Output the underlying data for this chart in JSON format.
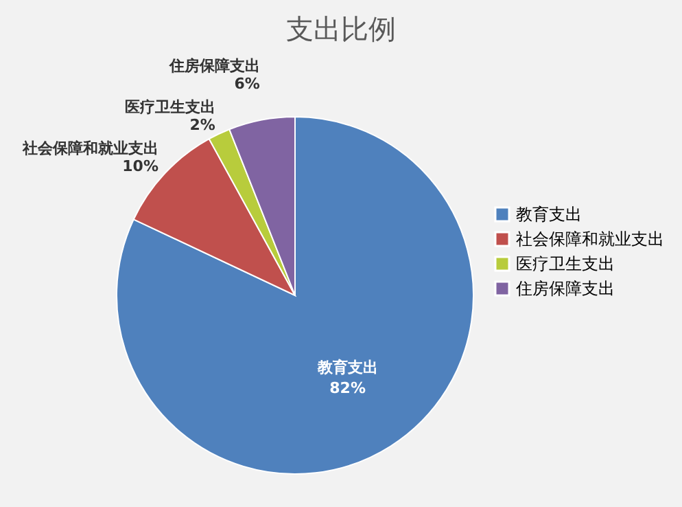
{
  "chart_data": {
    "type": "pie",
    "title": "支出比例",
    "categories": [
      "教育支出",
      "社会保障和就业支出",
      "医疗卫生支出",
      "住房保障支出"
    ],
    "values": [
      82,
      10,
      2,
      6
    ],
    "colors": [
      "#4f81bd",
      "#c0504d",
      "#b8cc3c",
      "#8064a2"
    ],
    "value_labels": [
      "82%",
      "10%",
      "2%",
      "6%"
    ],
    "legend": "right"
  }
}
